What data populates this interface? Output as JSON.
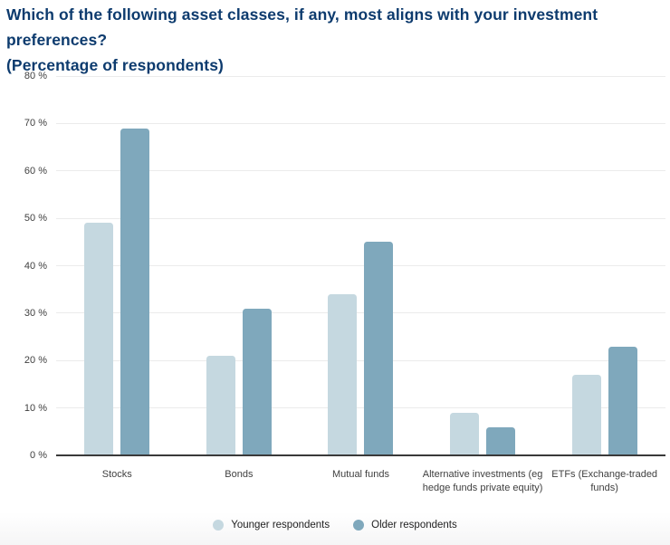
{
  "title": {
    "line1": "Which of the following asset classes, if any, most aligns with your investment preferences?",
    "line2": "(Percentage of respondents)"
  },
  "chart_data": {
    "type": "bar",
    "title": "Which of the following asset classes, if any, most aligns with your investment preferences? (Percentage of respondents)",
    "categories": [
      "Stocks",
      "Bonds",
      "Mutual funds",
      "Alternative investments (eg hedge funds private equity)",
      "ETFs (Exchange-traded funds)"
    ],
    "series": [
      {
        "name": "Younger respondents",
        "color": "#c5d8e0",
        "values": [
          49,
          21,
          34,
          9,
          17
        ]
      },
      {
        "name": "Older respondents",
        "color": "#7fa8bc",
        "values": [
          69,
          31,
          45,
          6,
          23
        ]
      }
    ],
    "xlabel": "",
    "ylabel": "",
    "ylim": [
      0,
      80
    ],
    "ytick_step": 10,
    "yticks": [
      "80 %",
      "70 %",
      "60 %",
      "50 %",
      "40 %",
      "30 %",
      "20 %",
      "10 %",
      "0 %"
    ],
    "grid": true,
    "legend_position": "bottom"
  },
  "colors": {
    "title": "#0d3b6e",
    "background": "#ffffff",
    "grid": "#ebebeb",
    "axis": "#3a3a3a",
    "tick_text": "#404040",
    "younger_bar": "#c5d8e0",
    "older_bar": "#7fa8bc",
    "footer_band": "#f5f5f6"
  }
}
